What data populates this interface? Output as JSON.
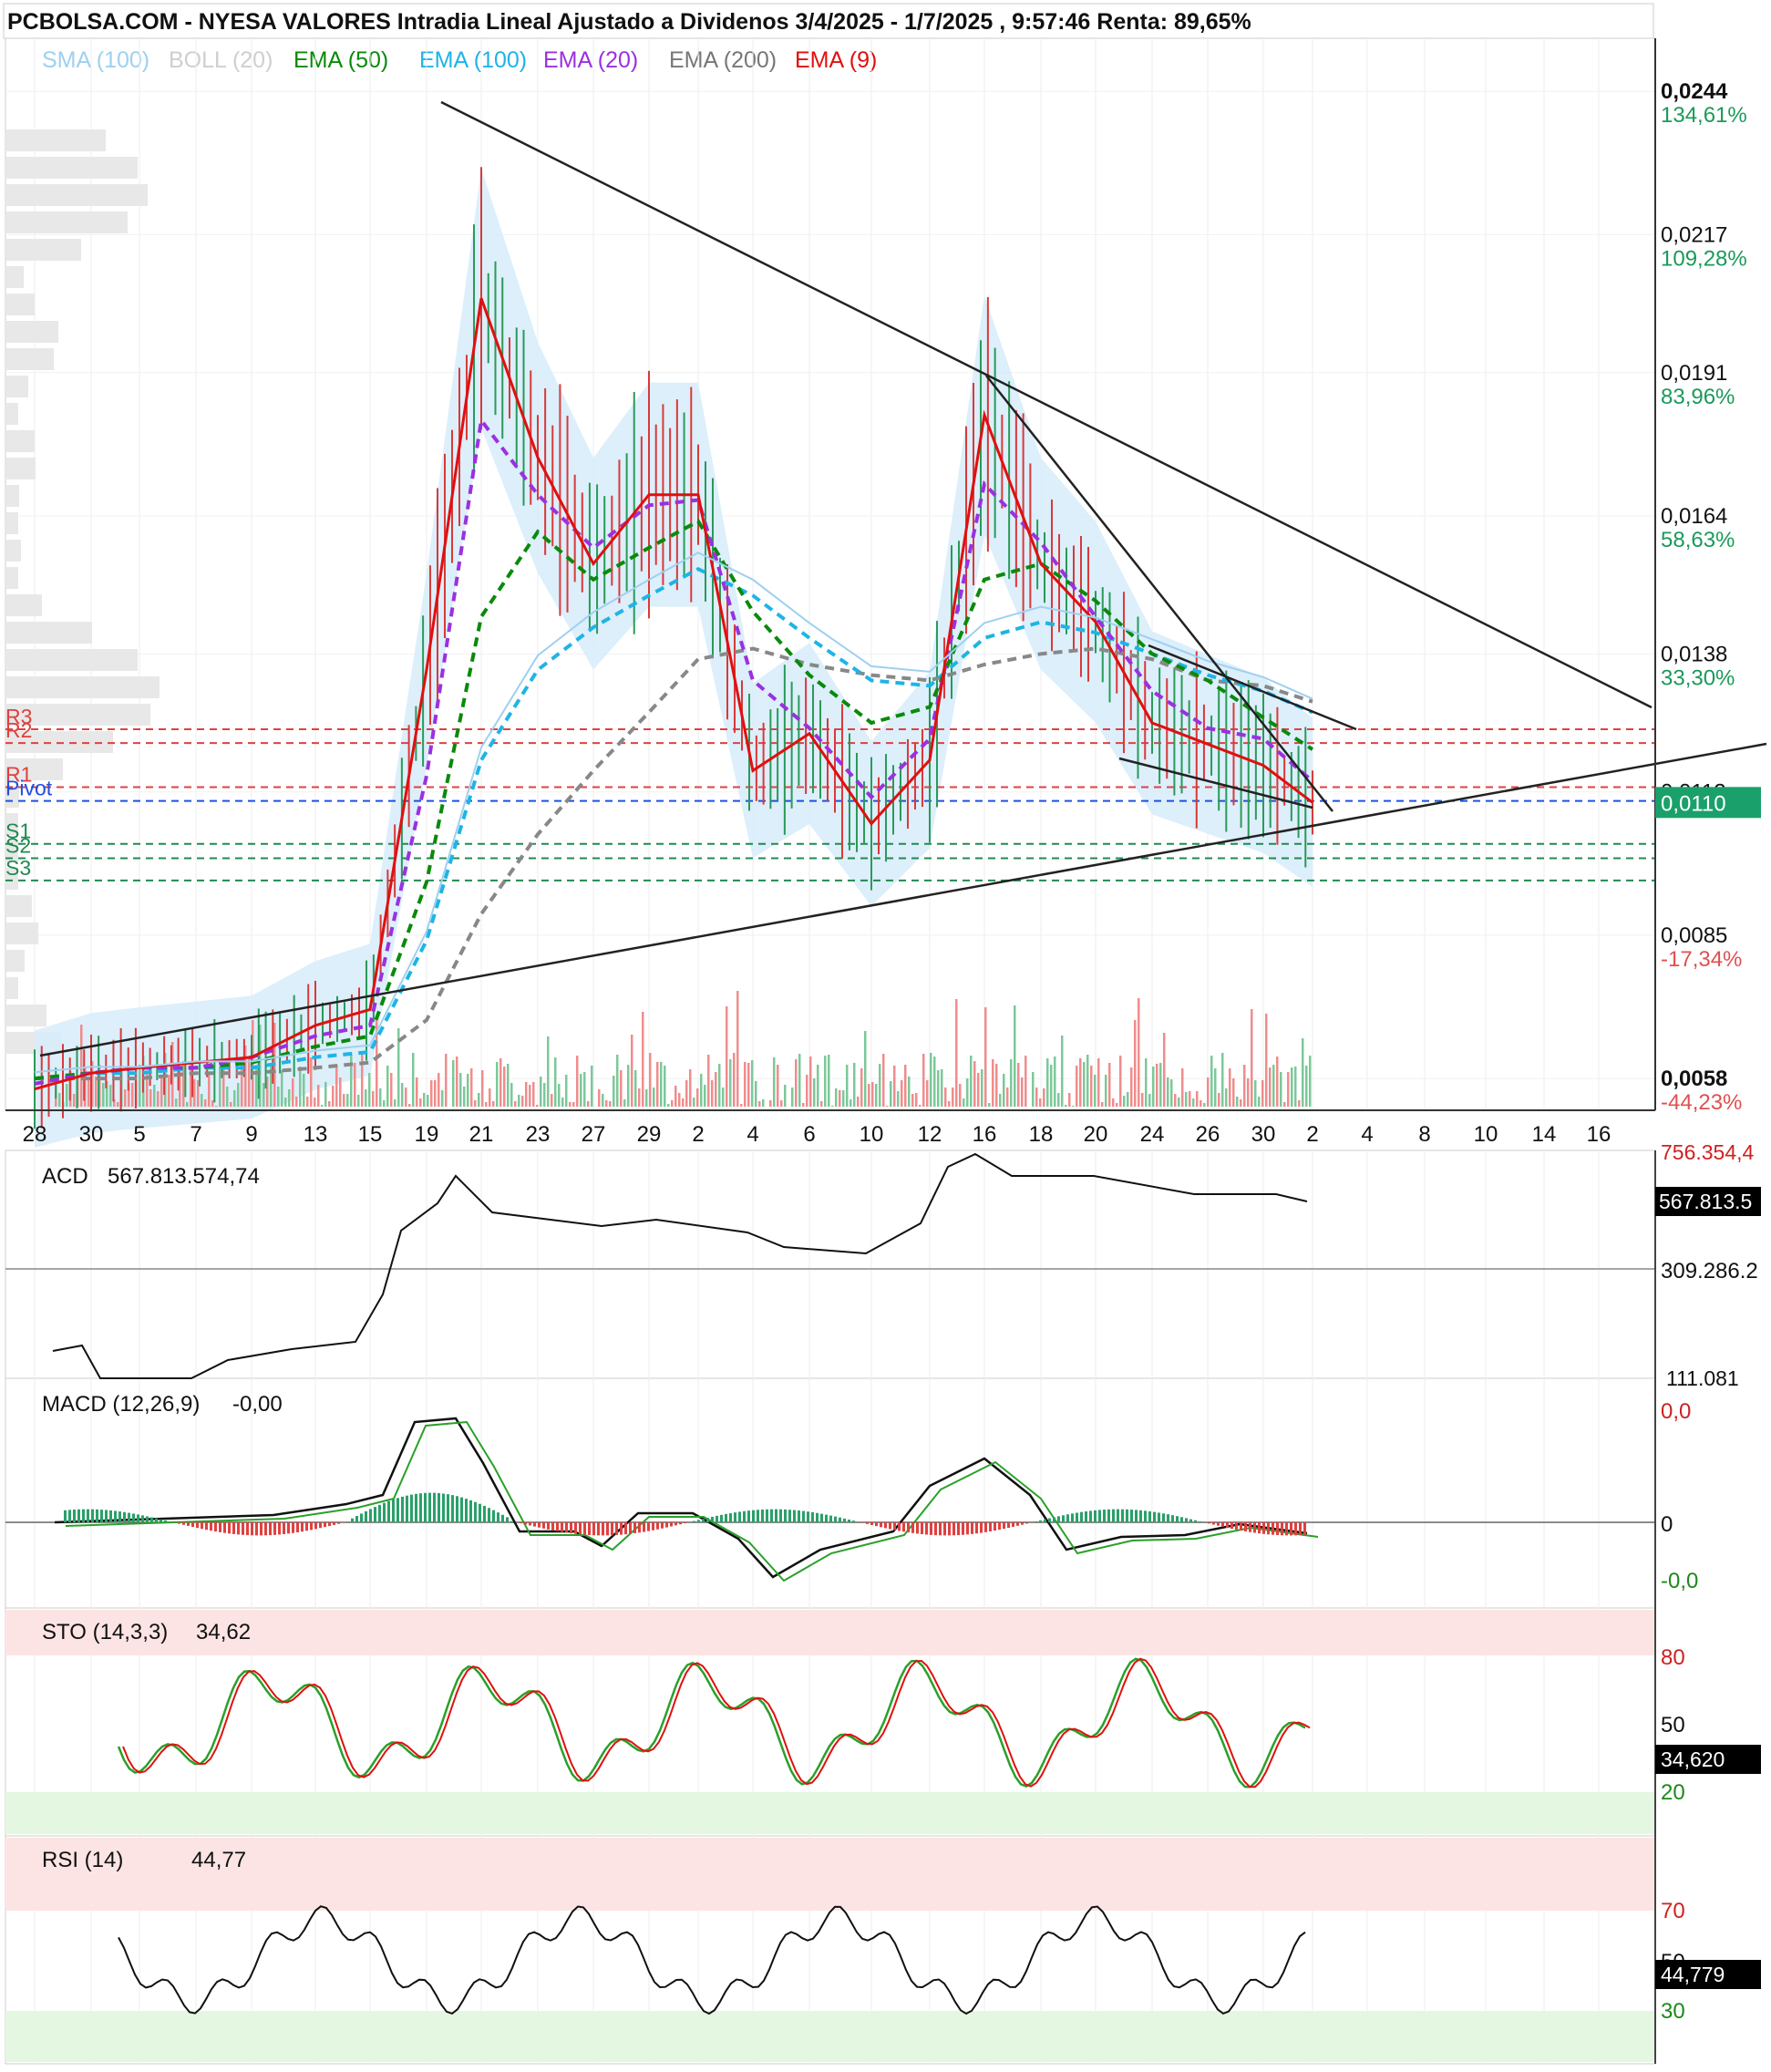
{
  "header": {
    "title": "PCBOLSA.COM - NYESA VALORES Intradia Lineal Ajustado a Dividenos 3/4/2025 - 1/7/2025 , 9:57:46 Renta: 89,65%"
  },
  "legend": [
    {
      "label": "SMA (100)",
      "color": "#9fd0f0"
    },
    {
      "label": "BOLL (20)",
      "color": "#cfcfcf"
    },
    {
      "label": "EMA (50)",
      "color": "#0a8a0a"
    },
    {
      "label": "EMA (100)",
      "color": "#1eb4e6"
    },
    {
      "label": "EMA (20)",
      "color": "#9b30e0"
    },
    {
      "label": "EMA (200)",
      "color": "#777777"
    },
    {
      "label": "EMA (9)",
      "color": "#e01010"
    }
  ],
  "price_axis": {
    "levels": [
      {
        "value": "0,0244",
        "pct": "134,61%",
        "pct_color": "#1a9a5a"
      },
      {
        "value": "0,0217",
        "pct": "109,28%",
        "pct_color": "#1a9a5a"
      },
      {
        "value": "0,0191",
        "pct": "83,96%",
        "pct_color": "#1a9a5a"
      },
      {
        "value": "0,0164",
        "pct": "58,63%",
        "pct_color": "#1a9a5a"
      },
      {
        "value": "0,0138",
        "pct": "33,30%",
        "pct_color": "#1a9a5a"
      },
      {
        "value": "0,0112",
        "pct": "",
        "pct_color": "#1a9a5a"
      },
      {
        "value": "0,0085",
        "pct": "-17,34%",
        "pct_color": "#e05050"
      },
      {
        "value": "0,0058",
        "pct": "-44,23%",
        "pct_color": "#e05050"
      }
    ],
    "current": "0,0110"
  },
  "pivots": [
    {
      "label": "R3",
      "price": 0.01238,
      "color": "#e04040"
    },
    {
      "label": "R2",
      "price": 0.01212,
      "color": "#e04040"
    },
    {
      "label": "R1",
      "price": 0.01129,
      "color": "#e04040"
    },
    {
      "label": "Pivot",
      "price": 0.01103,
      "color": "#2050e0"
    },
    {
      "label": "S1",
      "price": 0.01022,
      "color": "#208a50"
    },
    {
      "label": "S2",
      "price": 0.00995,
      "color": "#208a50"
    },
    {
      "label": "S3",
      "price": 0.00953,
      "color": "#208a50"
    }
  ],
  "x_labels": [
    "28",
    "30",
    "5",
    "7",
    "9",
    "13",
    "15",
    "19",
    "21",
    "23",
    "27",
    "29",
    "2",
    "4",
    "6",
    "10",
    "12",
    "16",
    "18",
    "20",
    "24",
    "26",
    "30",
    "2",
    "4",
    "8",
    "10",
    "14",
    "16"
  ],
  "panels": {
    "acd": {
      "label": "ACD",
      "value": "567.813.574,74",
      "axis": [
        "756.354,4",
        "567.813.5",
        "309.286.2",
        "111.081"
      ]
    },
    "macd": {
      "label": "MACD (12,26,9)",
      "value": "-0,00",
      "axis": [
        "0,0",
        "0",
        "-0,0"
      ]
    },
    "sto": {
      "label": "STO (14,3,3)",
      "value": "34,62",
      "axis": [
        "80",
        "50",
        "20"
      ],
      "current": "34,620"
    },
    "rsi": {
      "label": "RSI (14)",
      "value": "44,77",
      "axis": [
        "70",
        "50",
        "30"
      ],
      "current": "44,779"
    }
  },
  "chart_data": {
    "type": "line",
    "title": "NYESA VALORES Intradia Lineal Ajustado a Dividenos 3/4/2025 - 1/7/2025",
    "x": [
      "28",
      "30",
      "5",
      "7",
      "9",
      "13",
      "15",
      "19",
      "21",
      "23",
      "27",
      "29",
      "2",
      "4",
      "6",
      "10",
      "12",
      "16",
      "18",
      "20",
      "24",
      "26",
      "30",
      "2"
    ],
    "series": [
      {
        "name": "EMA (9)",
        "values": [
          0.0056,
          0.0059,
          0.006,
          0.0061,
          0.0062,
          0.0068,
          0.0071,
          0.0135,
          0.0205,
          0.0175,
          0.0155,
          0.0168,
          0.0168,
          0.0116,
          0.0123,
          0.0106,
          0.0118,
          0.0183,
          0.0155,
          0.0144,
          0.0125,
          0.0121,
          0.0117,
          0.011
        ]
      },
      {
        "name": "EMA (20)",
        "values": [
          0.0057,
          0.0059,
          0.006,
          0.006,
          0.0062,
          0.0066,
          0.0068,
          0.0115,
          0.0182,
          0.0168,
          0.0158,
          0.0166,
          0.0167,
          0.0133,
          0.0124,
          0.0111,
          0.0122,
          0.017,
          0.0159,
          0.0145,
          0.0131,
          0.0124,
          0.0122,
          0.0114
        ]
      },
      {
        "name": "EMA (50)",
        "values": [
          0.0058,
          0.0059,
          0.006,
          0.006,
          0.0061,
          0.0064,
          0.0066,
          0.0095,
          0.0145,
          0.0161,
          0.0152,
          0.0158,
          0.0163,
          0.0146,
          0.0134,
          0.0125,
          0.0128,
          0.0152,
          0.0155,
          0.0148,
          0.0138,
          0.0133,
          0.0126,
          0.012
        ]
      },
      {
        "name": "EMA (100)",
        "values": [
          0.0058,
          0.0059,
          0.0059,
          0.006,
          0.006,
          0.0062,
          0.0063,
          0.0084,
          0.0118,
          0.0135,
          0.0143,
          0.0149,
          0.0154,
          0.0149,
          0.0141,
          0.0133,
          0.0132,
          0.0141,
          0.0144,
          0.0142,
          0.0138,
          0.0134,
          0.0131,
          0.0127
        ]
      },
      {
        "name": "EMA (200)",
        "values": [
          0.0058,
          0.0058,
          0.0058,
          0.0059,
          0.0059,
          0.006,
          0.0061,
          0.0069,
          0.0089,
          0.0104,
          0.0116,
          0.0127,
          0.0137,
          0.0139,
          0.0136,
          0.0134,
          0.0133,
          0.0136,
          0.0138,
          0.0139,
          0.0137,
          0.0133,
          0.0132,
          0.0129
        ]
      }
    ],
    "ylim": [
      0.0052,
      0.0254
    ],
    "grid": true,
    "legend": "top-left"
  }
}
